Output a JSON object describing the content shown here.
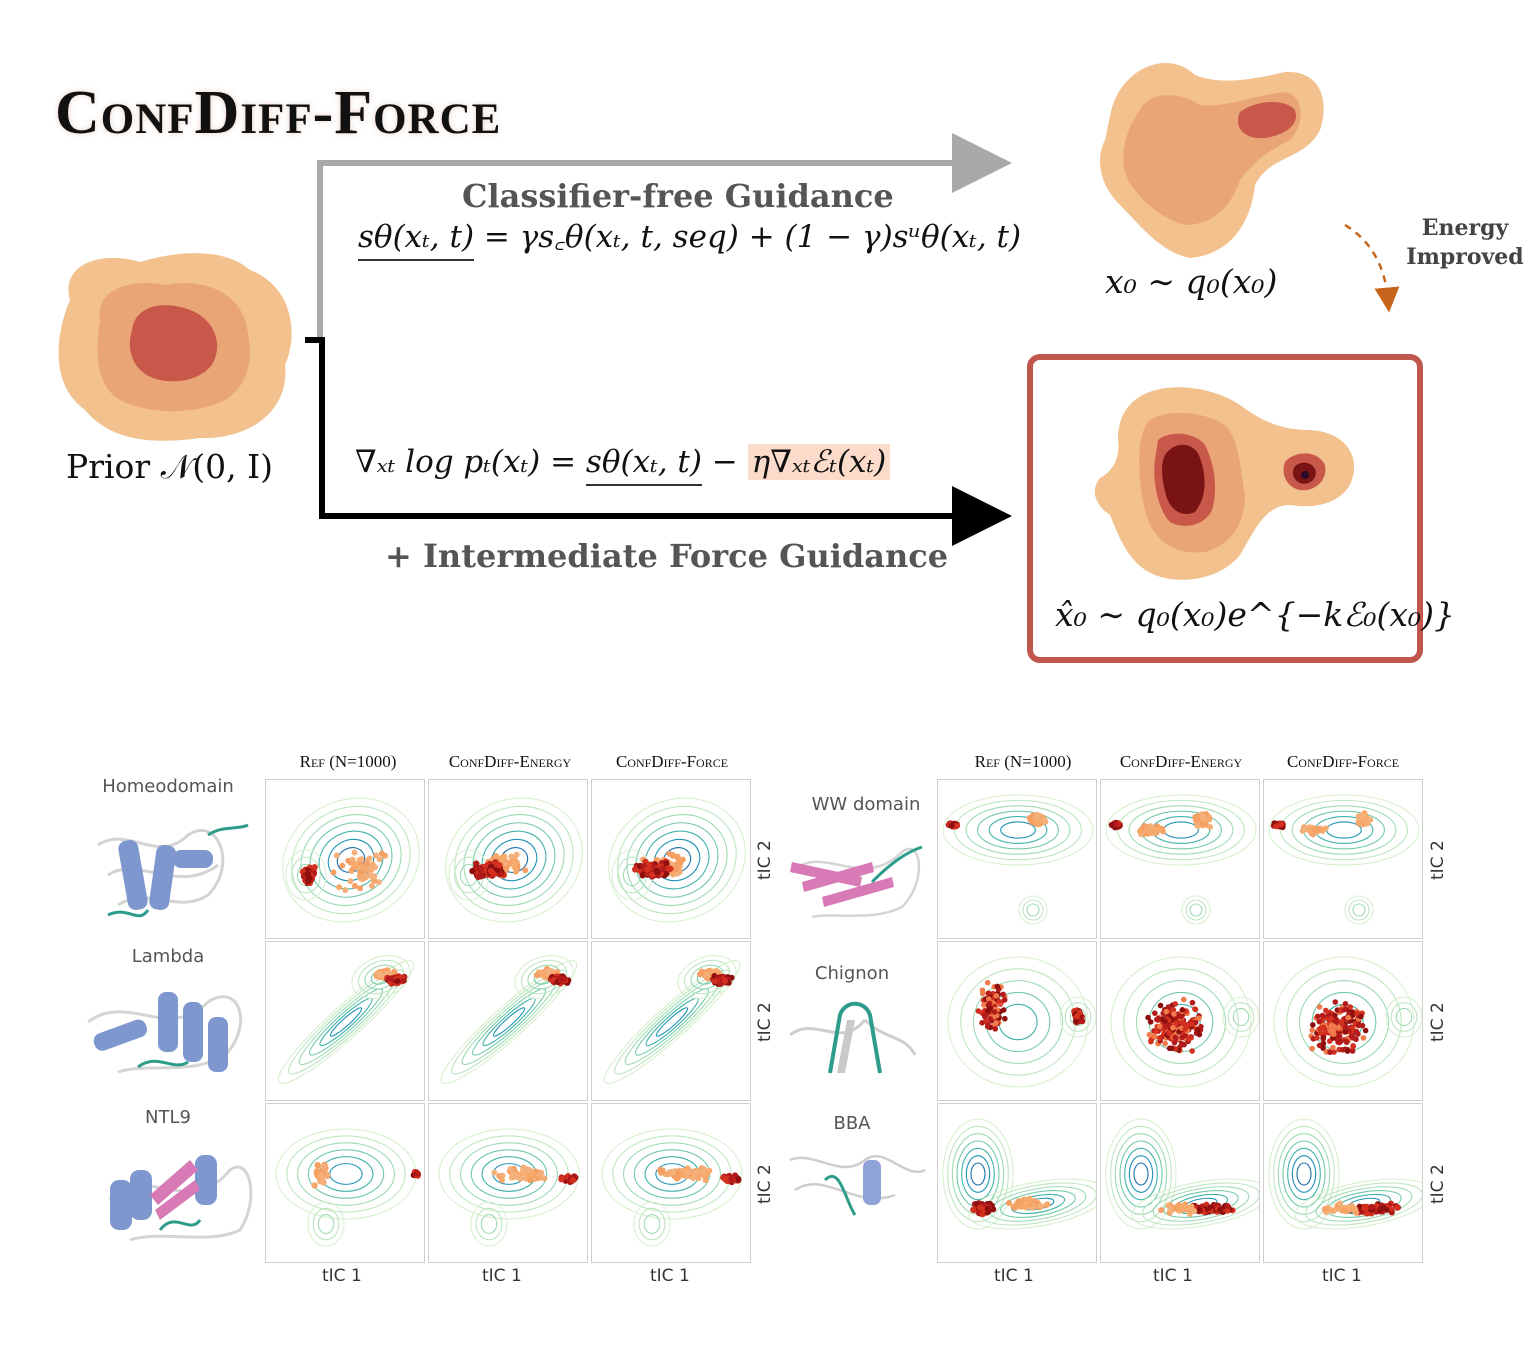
{
  "title": "ConfDiff-Force",
  "prior_label": "Prior 𝒩(0, I)",
  "cfg": {
    "heading": "Classifier-free Guidance",
    "equation_lhs": "sθ(xₜ, t)",
    "equation_rhs": " = γs꜀θ(xₜ, t, seq) + (1 − γ)sᵘθ(xₜ, t)"
  },
  "force": {
    "equation_a": "∇ₓₜ log pₜ(xₜ) = ",
    "equation_b": "sθ(xₜ, t)",
    "equation_c": " − ",
    "equation_d": "η∇ₓₜℰₜ(xₜ)",
    "heading": "+ Intermediate Force Guidance"
  },
  "x0_label": "x₀ ∼ q₀(x₀)",
  "xhat_label": "x̂₀ ∼ q₀(x₀)e^{−kℰ₀(x₀)}",
  "energy_note": [
    "Energy",
    "Improved"
  ],
  "colors": {
    "outer": "#f2c18e",
    "mid": "#e9a575",
    "inner": "#c8594a",
    "core": "#7a1414",
    "box": "#c0574c",
    "highlight": "#fbdccb",
    "arrow_gray": "#a9a9a9",
    "energy_arrow": "#c8651c"
  },
  "grid": {
    "column_headers": [
      "Ref (N=1000)",
      "ConfDiff-Energy",
      "ConfDiff-Force"
    ],
    "left_rows": [
      "Homeodomain",
      "Lambda",
      "NTL9"
    ],
    "right_rows": [
      "WW domain",
      "Chignon",
      "BBA"
    ],
    "x_axis_label": "tIC 1",
    "y_axis_label": "tIC 2"
  }
}
